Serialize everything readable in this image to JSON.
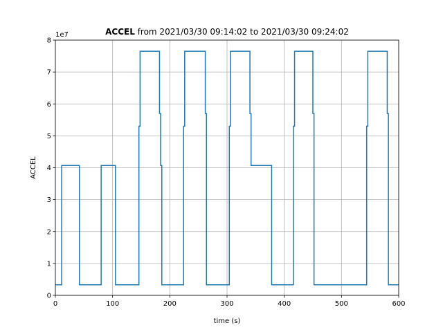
{
  "chart_data": {
    "type": "line",
    "title_bold": "ACCEL",
    "title_rest": " from 2021/03/30 09:14:02 to 2021/03/30 09:24:02",
    "xlabel": "time (s)",
    "ylabel": "ACCEL",
    "y_offset_label": "1e7",
    "xlim": [
      0,
      600
    ],
    "ylim": [
      0,
      8
    ],
    "y_scale_factor": 10000000,
    "xticks": [
      0,
      100,
      200,
      300,
      400,
      500,
      600
    ],
    "yticks": [
      0,
      1,
      2,
      3,
      4,
      5,
      6,
      7,
      8
    ],
    "grid": true,
    "legend": "none",
    "series": [
      {
        "color": "#1f77b4",
        "step": "post",
        "x": [
          0,
          11,
          42,
          80,
          105,
          146,
          148,
          182,
          184,
          186,
          188,
          224,
          226,
          262,
          264,
          304,
          306,
          340,
          342,
          344,
          378,
          416,
          418,
          450,
          452,
          544,
          546,
          580,
          582,
          600
        ],
        "values": [
          0.33,
          4.07,
          0.33,
          4.07,
          0.33,
          5.3,
          7.65,
          5.7,
          4.07,
          0.33,
          0.33,
          5.3,
          7.65,
          5.7,
          0.33,
          5.3,
          7.65,
          5.7,
          4.07,
          4.07,
          0.33,
          5.3,
          7.65,
          5.7,
          0.33,
          5.3,
          7.65,
          5.7,
          0.33,
          0.33
        ]
      }
    ]
  }
}
